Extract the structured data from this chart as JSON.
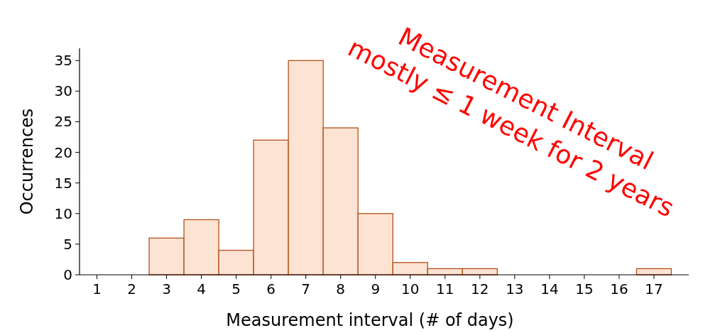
{
  "chart_data": {
    "type": "histogram",
    "xlabel": "Measurement interval (# of days)",
    "ylabel": "Occurrences",
    "bins": [
      0.5,
      1.5,
      2.5,
      3.5,
      4.5,
      5.5,
      6.5,
      7.5,
      8.5,
      9.5,
      10.5,
      11.5,
      12.5,
      13.5,
      14.5,
      15.5,
      16.5,
      17.5
    ],
    "values": [
      0,
      0,
      6,
      9,
      4,
      22,
      35,
      24,
      10,
      2,
      1,
      1,
      0,
      0,
      0,
      0,
      1
    ],
    "color": "#fde3d3",
    "xlim": [
      0.5,
      18
    ],
    "xticks": [
      1,
      2,
      3,
      4,
      5,
      6,
      7,
      8,
      9,
      10,
      11,
      12,
      13,
      14,
      15,
      16,
      17
    ],
    "ylim": [
      0,
      37
    ],
    "yticks": [
      0,
      5,
      10,
      15,
      20,
      25,
      30,
      35
    ],
    "grid": false,
    "annotations": [
      "Measurement Interval\nmostly ≤ 1 week for 2 years"
    ]
  }
}
